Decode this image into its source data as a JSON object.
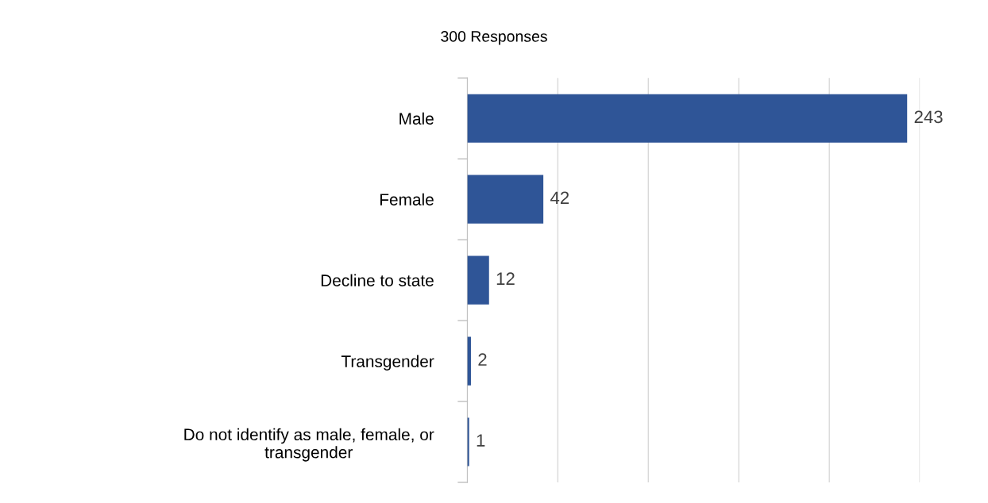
{
  "chart_data": {
    "type": "bar",
    "orientation": "horizontal",
    "title": "300 Responses",
    "categories": [
      "Male",
      "Female",
      "Decline to state",
      "Transgender",
      "Do not identify as male, female, or\ntransgender"
    ],
    "values": [
      243,
      42,
      12,
      2,
      1
    ],
    "color": "#2f5597",
    "xlim": [
      0,
      250
    ],
    "xticks": [
      {
        "value": 0,
        "label": null
      },
      {
        "value": 50,
        "label": null
      },
      {
        "value": 100,
        "label": null
      },
      {
        "value": 150,
        "label": null
      },
      {
        "value": 200,
        "label": null
      },
      {
        "value": 250,
        "label": null
      }
    ],
    "grid": "x",
    "tick_labels": "y",
    "data_labels": true,
    "legend": false
  }
}
